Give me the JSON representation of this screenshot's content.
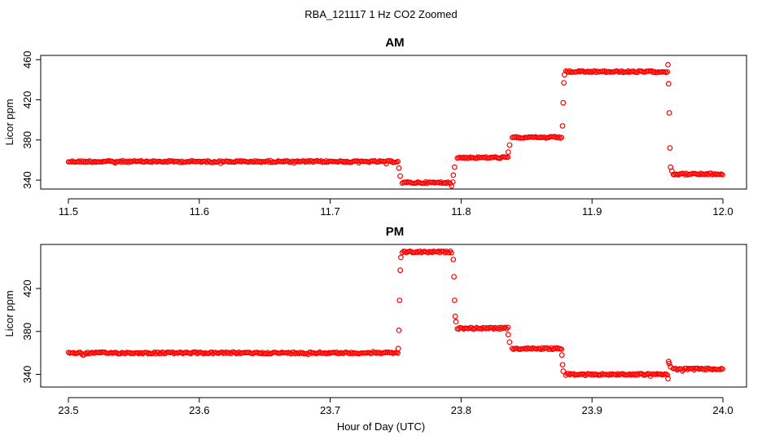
{
  "page": {
    "title": "RBA_121117  1 Hz CO2 Zoomed",
    "xlabel": "Hour of Day (UTC)"
  },
  "chart_data": [
    {
      "type": "scatter",
      "title": "AM",
      "ylabel": "Licor ppm",
      "xlim": [
        11.5,
        12.0
      ],
      "ylim": [
        336,
        461
      ],
      "xticks": [
        "11.5",
        "11.6",
        "11.7",
        "11.8",
        "11.9",
        "12.0"
      ],
      "xtick_values": [
        11.5,
        11.6,
        11.7,
        11.8,
        11.9,
        12.0
      ],
      "yticks": [
        "340",
        "380",
        "420",
        "460"
      ],
      "ytick_values": [
        340,
        380,
        420,
        460
      ],
      "marker_color": "#ff0000",
      "segments": [
        {
          "x_start": 11.5,
          "x_end": 11.752,
          "y": 358.5
        },
        {
          "x_start": 11.755,
          "x_end": 11.794,
          "y": 337.5
        },
        {
          "x_start": 11.797,
          "x_end": 11.836,
          "y": 362.5
        },
        {
          "x_start": 11.839,
          "x_end": 11.877,
          "y": 382.5
        },
        {
          "x_start": 11.88,
          "x_end": 11.958,
          "y": 448
        },
        {
          "x_start": 11.962,
          "x_end": 12.0,
          "y": 346
        }
      ],
      "transitions": [
        {
          "x": 11.7525,
          "y": 352
        },
        {
          "x": 11.7535,
          "y": 344
        },
        {
          "x": 11.794,
          "y": 345
        },
        {
          "x": 11.795,
          "y": 353
        },
        {
          "x": 11.836,
          "y": 368
        },
        {
          "x": 11.837,
          "y": 375
        },
        {
          "x": 11.8775,
          "y": 394
        },
        {
          "x": 11.878,
          "y": 417
        },
        {
          "x": 11.8785,
          "y": 437
        },
        {
          "x": 11.879,
          "y": 445
        },
        {
          "x": 11.958,
          "y": 455
        },
        {
          "x": 11.9585,
          "y": 436
        },
        {
          "x": 11.959,
          "y": 407
        },
        {
          "x": 11.9595,
          "y": 372
        },
        {
          "x": 11.96,
          "y": 353
        },
        {
          "x": 11.961,
          "y": 349
        }
      ]
    },
    {
      "type": "scatter",
      "title": "PM",
      "ylabel": "Licor ppm",
      "xlim": [
        23.5,
        24.0
      ],
      "ylim": [
        332,
        458
      ],
      "xticks": [
        "23.5",
        "23.6",
        "23.7",
        "23.8",
        "23.9",
        "24.0"
      ],
      "xtick_values": [
        23.5,
        23.6,
        23.7,
        23.8,
        23.9,
        24.0
      ],
      "yticks": [
        "340",
        "380",
        "420"
      ],
      "ytick_values": [
        340,
        380,
        420
      ],
      "marker_color": "#ff0000",
      "segments": [
        {
          "x_start": 23.5,
          "x_end": 23.752,
          "y": 360
        },
        {
          "x_start": 23.755,
          "x_end": 23.793,
          "y": 454
        },
        {
          "x_start": 23.797,
          "x_end": 23.836,
          "y": 383
        },
        {
          "x_start": 23.839,
          "x_end": 23.877,
          "y": 364
        },
        {
          "x_start": 23.88,
          "x_end": 23.958,
          "y": 340
        },
        {
          "x_start": 23.962,
          "x_end": 24.0,
          "y": 345
        }
      ],
      "transitions": [
        {
          "x": 23.752,
          "y": 364
        },
        {
          "x": 23.7525,
          "y": 381
        },
        {
          "x": 23.753,
          "y": 409
        },
        {
          "x": 23.7535,
          "y": 437
        },
        {
          "x": 23.754,
          "y": 449
        },
        {
          "x": 23.794,
          "y": 447
        },
        {
          "x": 23.7945,
          "y": 431
        },
        {
          "x": 23.795,
          "y": 409
        },
        {
          "x": 23.7955,
          "y": 394
        },
        {
          "x": 23.796,
          "y": 389
        },
        {
          "x": 23.836,
          "y": 377
        },
        {
          "x": 23.837,
          "y": 370
        },
        {
          "x": 23.877,
          "y": 358
        },
        {
          "x": 23.8775,
          "y": 349
        },
        {
          "x": 23.878,
          "y": 343
        },
        {
          "x": 23.958,
          "y": 336
        },
        {
          "x": 23.9585,
          "y": 352
        },
        {
          "x": 23.959,
          "y": 350
        },
        {
          "x": 23.96,
          "y": 347
        }
      ]
    }
  ]
}
